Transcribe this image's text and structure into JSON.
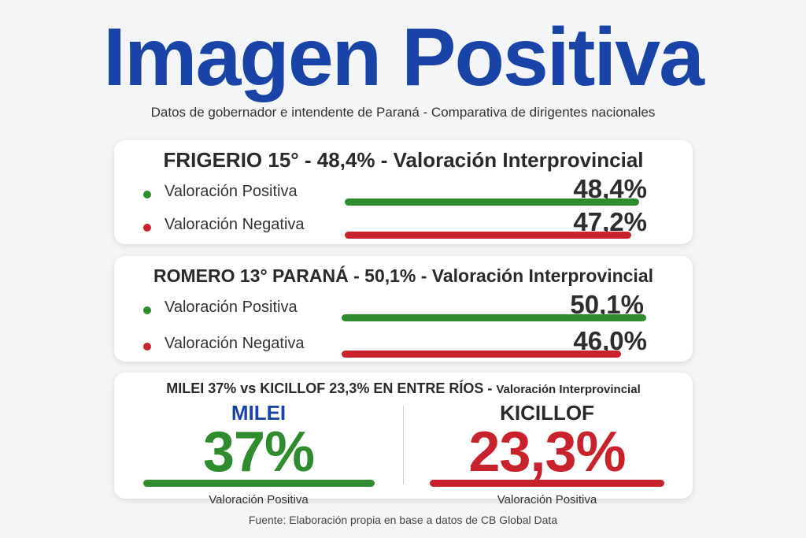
{
  "title": "Imagen Positiva",
  "subtitle": "Datos de gobernador e intendente de Paraná - Comparativa de dirigentes nacionales",
  "colors": {
    "title_blue": "#1a43a8",
    "positive_green": "#2e8b2e",
    "negative_red": "#c8232c"
  },
  "frigerio": {
    "heading": "FRIGERIO 15° - 48,4% - Valoración Interprovincial",
    "positive_label": "Valoración Positiva",
    "positive_value": "48,4%",
    "positive_pct": 48.4,
    "negative_label": "Valoración Negativa",
    "negative_value": "47,2%",
    "negative_pct": 47.2
  },
  "romero": {
    "heading": "ROMERO 13° PARANÁ - 50,1% - Valoración Interprovincial",
    "positive_label": "Valoración Positiva",
    "positive_value": "50,1%",
    "positive_pct": 50.1,
    "negative_label": "Valoración Negativa",
    "negative_value": "46,0%",
    "negative_pct": 46.0
  },
  "comparison": {
    "heading_main": "MILEI 37% vs KICILLOF 23,3% EN ENTRE RÍOS",
    "heading_sep": " - ",
    "heading_suffix": "Valoración Interprovincial",
    "milei": {
      "name": "MILEI",
      "value": "37%",
      "label": "Valoración Positiva"
    },
    "kicillof": {
      "name": "KICILLOF",
      "value": "23,3%",
      "label": "Valoración Positiva"
    }
  },
  "footer": "Fuente: Elaboración propia en base a datos de CB Global Data"
}
